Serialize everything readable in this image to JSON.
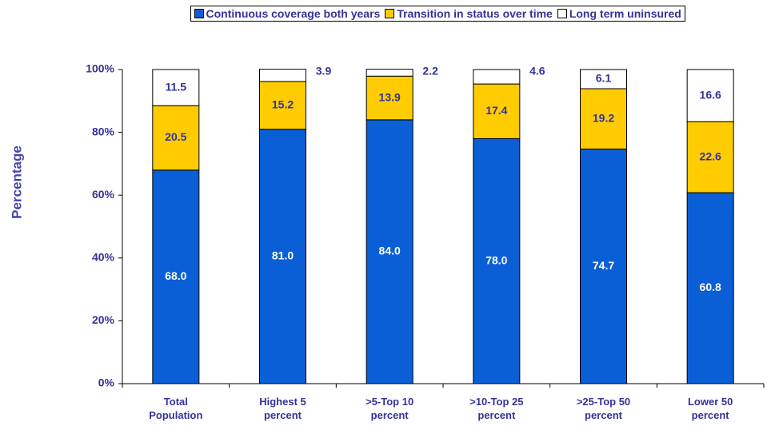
{
  "chart_data": {
    "type": "stacked_bar",
    "categories": [
      "Total Population",
      "Highest 5 percent",
      ">5-Top 10 percent",
      ">10-Top 25 percent",
      ">25-Top 50 percent",
      "Lower 50 percent"
    ],
    "series": [
      {
        "name": "Continuous coverage both years",
        "color": "#0a5fd6",
        "values": [
          68.0,
          81.0,
          84.0,
          78.0,
          74.7,
          60.8
        ],
        "value_labels": [
          "68.0",
          "81.0",
          "84.0",
          "78.0",
          "74.7",
          "60.8"
        ]
      },
      {
        "name": "Transition in status over time",
        "color": "#ffcc00",
        "values": [
          20.5,
          15.2,
          13.9,
          17.4,
          19.2,
          22.6
        ],
        "value_labels": [
          "20.5",
          "15.2",
          "13.9",
          "17.4",
          "19.2",
          "22.6"
        ]
      },
      {
        "name": "Long term uninsured",
        "color": "#ffffff",
        "values": [
          11.5,
          3.9,
          2.2,
          4.6,
          6.1,
          16.6
        ],
        "value_labels": [
          "11.5",
          "3.9",
          "2.2",
          "4.6",
          "6.1",
          "16.6"
        ]
      }
    ],
    "y_label": "Percentage",
    "ylim": [
      0,
      100
    ],
    "yticks": [
      {
        "value": 0,
        "label": "0%"
      },
      {
        "value": 20,
        "label": "20%"
      },
      {
        "value": 40,
        "label": "40%"
      },
      {
        "value": 60,
        "label": "60%"
      },
      {
        "value": 80,
        "label": "80%"
      },
      {
        "value": 100,
        "label": "100%"
      }
    ],
    "legend": "top"
  }
}
